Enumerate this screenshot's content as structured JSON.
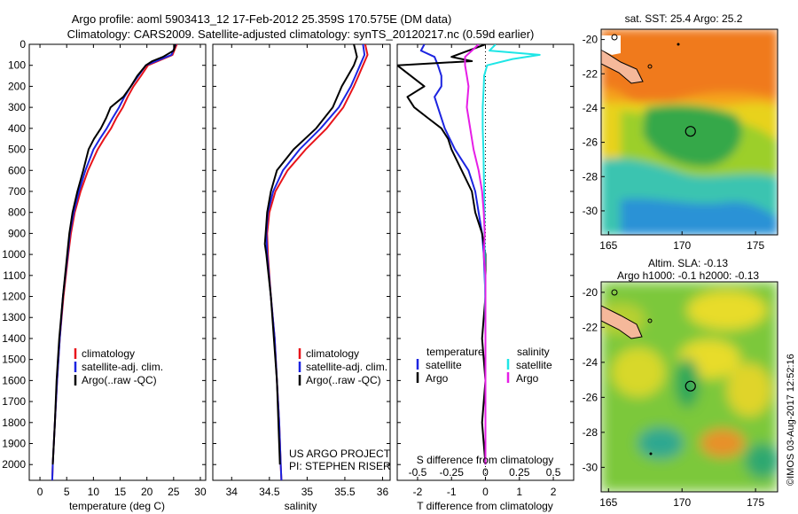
{
  "header": {
    "line1": "Argo profile: aoml 5903413_12 17-Feb-2012 25.359S 170.575E (DM data)",
    "line2": "Climatology: CARS2009. Satellite-adjusted climatology: synTS_20120217.nc (0.59d earlier)"
  },
  "credit": {
    "project": "US ARGO PROJECT",
    "pi": "PI: STEPHEN RISER",
    "stamp": "©IMOS 03-Aug-2017 12:52:16"
  },
  "colors": {
    "climatology": "#e8141b",
    "satellite": "#1c24e0",
    "argo": "#000000",
    "sal_satellite": "#1ee6e6",
    "sal_argo": "#e61ee6"
  },
  "chart_data": [
    {
      "type": "line",
      "panel": "temperature",
      "xlabel": "temperature (deg C)",
      "xlim": [
        -2,
        31
      ],
      "ylim": [
        2075,
        0
      ],
      "xticks": [
        0,
        5,
        10,
        15,
        20,
        25,
        30
      ],
      "yticks": [
        0,
        100,
        200,
        300,
        400,
        500,
        600,
        700,
        800,
        900,
        1000,
        1100,
        1200,
        1300,
        1400,
        1500,
        1600,
        1700,
        1800,
        1900,
        2000
      ],
      "legend": [
        "climatology",
        "satellite-adj. clim.",
        "Argo(..raw -QC)"
      ],
      "series": [
        {
          "name": "climatology",
          "color": "#e8141b",
          "depth": [
            0,
            50,
            100,
            150,
            200,
            250,
            300,
            350,
            400,
            450,
            500,
            600,
            700,
            800,
            900,
            1000,
            1200,
            1400,
            1600,
            1800,
            2000,
            2075
          ],
          "values": [
            25.6,
            24.8,
            20.2,
            18.9,
            17.5,
            16.4,
            15.5,
            14.3,
            13.3,
            12.0,
            10.8,
            9.0,
            7.6,
            6.5,
            5.8,
            5.3,
            4.4,
            3.7,
            3.2,
            2.8,
            2.4,
            2.3
          ]
        },
        {
          "name": "satellite-adj. clim.",
          "color": "#1c24e0",
          "depth": [
            0,
            50,
            100,
            150,
            200,
            250,
            300,
            350,
            400,
            450,
            500,
            600,
            700,
            800,
            900,
            1000,
            1200,
            1400,
            1600,
            1800,
            2000,
            2075
          ],
          "values": [
            25.4,
            24.6,
            19.8,
            18.4,
            17.0,
            15.8,
            14.8,
            13.6,
            12.5,
            11.2,
            10.0,
            8.5,
            7.3,
            6.3,
            5.6,
            5.2,
            4.3,
            3.7,
            3.2,
            2.8,
            2.4,
            2.3
          ]
        },
        {
          "name": "Argo(..raw -QC)",
          "color": "#000000",
          "depth": [
            0,
            30,
            60,
            80,
            100,
            150,
            200,
            250,
            300,
            350,
            400,
            450,
            500,
            600,
            700,
            800,
            900,
            1000,
            1200,
            1400,
            1600,
            1800,
            2000
          ],
          "values": [
            25.3,
            25.0,
            23.0,
            21.0,
            19.8,
            18.2,
            17.0,
            15.6,
            13.2,
            12.4,
            11.4,
            10.1,
            9.1,
            8.1,
            7.0,
            6.1,
            5.5,
            5.1,
            4.3,
            3.6,
            3.1,
            2.8,
            2.4
          ]
        }
      ]
    },
    {
      "type": "line",
      "panel": "salinity",
      "xlabel": "salinity",
      "xlim": [
        33.75,
        36.1
      ],
      "ylim": [
        2075,
        0
      ],
      "xticks": [
        34,
        34.5,
        35,
        35.5,
        36
      ],
      "legend": [
        "climatology",
        "satellite-adj. clim.",
        "Argo(..raw -QC)"
      ],
      "series": [
        {
          "name": "climatology",
          "color": "#e8141b",
          "depth": [
            0,
            50,
            100,
            150,
            200,
            300,
            400,
            500,
            600,
            700,
            800,
            900,
            1000,
            1200,
            1400,
            1600,
            1800,
            2000,
            2075
          ],
          "values": [
            35.77,
            35.8,
            35.74,
            35.68,
            35.62,
            35.48,
            35.26,
            34.98,
            34.74,
            34.58,
            34.5,
            34.47,
            34.48,
            34.52,
            34.57,
            34.6,
            34.63,
            34.65,
            34.66
          ]
        },
        {
          "name": "satellite-adj. clim.",
          "color": "#1c24e0",
          "depth": [
            0,
            50,
            100,
            150,
            200,
            300,
            400,
            500,
            600,
            700,
            800,
            900,
            1000,
            1200,
            1400,
            1600,
            1800,
            2000,
            2075
          ],
          "values": [
            35.74,
            35.76,
            35.7,
            35.64,
            35.58,
            35.42,
            35.18,
            34.9,
            34.68,
            34.55,
            34.48,
            34.46,
            34.47,
            34.52,
            34.57,
            34.6,
            34.63,
            34.65,
            34.66
          ]
        },
        {
          "name": "Argo(..raw -QC)",
          "color": "#000000",
          "depth": [
            0,
            30,
            60,
            100,
            150,
            200,
            300,
            400,
            500,
            600,
            700,
            800,
            900,
            950,
            1000,
            1200,
            1400,
            1600,
            1800,
            2000
          ],
          "values": [
            35.62,
            35.64,
            35.66,
            35.62,
            35.54,
            35.46,
            35.34,
            35.12,
            34.82,
            34.6,
            34.52,
            34.47,
            34.45,
            34.44,
            34.46,
            34.52,
            34.56,
            34.6,
            34.62,
            34.64
          ]
        }
      ]
    },
    {
      "type": "line",
      "panel": "difference",
      "xlabel": "T difference from climatology",
      "xlabel_top": "S difference from climatology",
      "xlim": [
        -2.6,
        2.6
      ],
      "ylim": [
        2075,
        0
      ],
      "xticks": [
        -2,
        -1,
        0,
        1,
        2
      ],
      "xticks_s": [
        -0.5,
        -0.25,
        0,
        0.25,
        0.5
      ],
      "legend": {
        "temperature_header": "temperature",
        "salinity_header": "salinity",
        "satellite": "satellite",
        "argo": "Argo"
      },
      "series": [
        {
          "name": "temperature satellite",
          "color": "#1c24e0",
          "depth": [
            0,
            30,
            60,
            100,
            150,
            200,
            250,
            300,
            400,
            500,
            600,
            700,
            800,
            900,
            1000,
            1200,
            1400,
            1600,
            1800,
            2000
          ],
          "values": [
            -1.8,
            -1.9,
            -1.5,
            -1.4,
            -1.3,
            -1.3,
            -1.5,
            -1.4,
            -1.2,
            -0.9,
            -0.5,
            -0.3,
            -0.2,
            -0.1,
            -0.05,
            0.0,
            0.0,
            0.0,
            0.0,
            0.0
          ]
        },
        {
          "name": "temperature Argo",
          "color": "#000000",
          "depth": [
            0,
            60,
            80,
            100,
            150,
            200,
            250,
            300,
            350,
            400,
            450,
            500,
            600,
            700,
            800,
            900,
            1000,
            1200,
            1400,
            1600,
            1800,
            2000
          ],
          "values": [
            0.0,
            -1.0,
            -0.4,
            -2.6,
            -2.2,
            -1.8,
            -2.3,
            -2.1,
            -1.7,
            -1.3,
            -1.1,
            -1.0,
            -0.7,
            -0.4,
            -0.3,
            -0.1,
            0.0,
            0.0,
            -0.1,
            0.0,
            -0.1,
            0.0
          ]
        },
        {
          "name": "salinity satellite",
          "color": "#1ee6e6",
          "depth": [
            0,
            30,
            50,
            70,
            100,
            150,
            200,
            300,
            400,
            500,
            600,
            700,
            800,
            900,
            1000,
            1200,
            1400,
            1600,
            1800,
            2000
          ],
          "values": [
            0.3,
            0.12,
            1.6,
            0.8,
            0.05,
            -0.04,
            -0.05,
            -0.08,
            -0.08,
            -0.06,
            -0.05,
            -0.04,
            -0.03,
            -0.03,
            -0.02,
            -0.01,
            0.0,
            0.0,
            0.0,
            0.0
          ]
        },
        {
          "name": "salinity Argo",
          "color": "#e61ee6",
          "depth": [
            0,
            30,
            60,
            100,
            150,
            200,
            300,
            400,
            500,
            600,
            700,
            800,
            900,
            1000,
            1100,
            1200,
            1400,
            1600,
            1800,
            2000
          ],
          "values": [
            -0.2,
            -0.4,
            -0.6,
            -0.6,
            -0.55,
            -0.5,
            -0.55,
            -0.45,
            -0.35,
            -0.2,
            -0.1,
            -0.05,
            -0.02,
            -0.05,
            0.0,
            0.0,
            0.0,
            0.0,
            0.0,
            0.0
          ]
        }
      ]
    },
    {
      "type": "heatmap",
      "panel": "sst_map",
      "title": "sat. SST: 25.4  Argo: 25.2",
      "xlim": [
        164.5,
        176.5
      ],
      "ylim": [
        -31.4,
        -19.4
      ],
      "xticks": [
        165,
        170,
        175
      ],
      "yticks": [
        -20,
        -22,
        -24,
        -26,
        -28,
        -30
      ],
      "marker": {
        "lon": 170.575,
        "lat": -25.359
      }
    },
    {
      "type": "heatmap",
      "panel": "sla_map",
      "title_line1": "Altim. SLA: -0.13",
      "title_line2": "Argo h1000: -0.1 h2000: -0.13",
      "xlim": [
        164.5,
        176.5
      ],
      "ylim": [
        -31.4,
        -19.4
      ],
      "xticks": [
        165,
        170,
        175
      ],
      "yticks": [
        -20,
        -22,
        -24,
        -26,
        -28,
        -30
      ],
      "marker": {
        "lon": 170.575,
        "lat": -25.359
      }
    }
  ]
}
